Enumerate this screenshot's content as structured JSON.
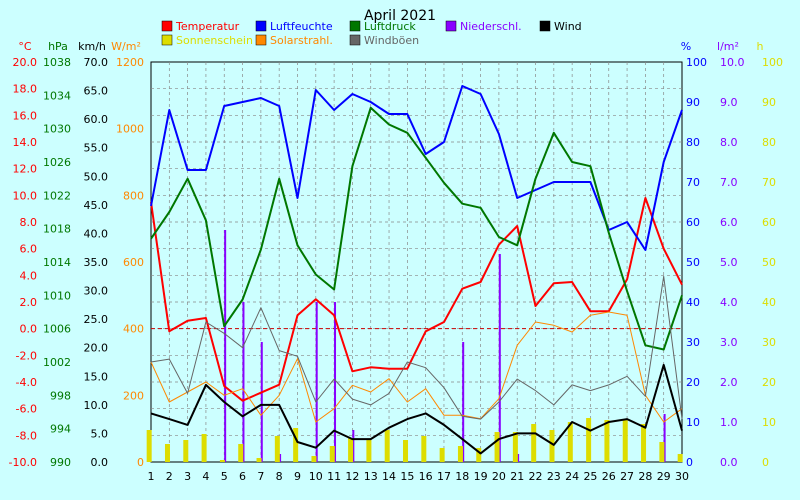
{
  "chart_data": {
    "type": "line",
    "title": "April 2021",
    "days": [
      1,
      2,
      3,
      4,
      5,
      6,
      7,
      8,
      9,
      10,
      11,
      12,
      13,
      14,
      15,
      16,
      17,
      18,
      19,
      20,
      21,
      22,
      23,
      24,
      25,
      26,
      27,
      28,
      29,
      30
    ],
    "legend": [
      {
        "label": "Temperatur",
        "color": "#ff0000",
        "kind": "line"
      },
      {
        "label": "Luftfeuchte",
        "color": "#0000ff",
        "kind": "line"
      },
      {
        "label": "Luftdruck",
        "color": "#007700",
        "kind": "line"
      },
      {
        "label": "Niederschl.",
        "color": "#8800ff",
        "kind": "bar"
      },
      {
        "label": "Wind",
        "color": "#000000",
        "kind": "line"
      },
      {
        "label": "Sonnenschein",
        "color": "#dddd00",
        "kind": "bar"
      },
      {
        "label": "Solarstrahl.",
        "color": "#ff8800",
        "kind": "line"
      },
      {
        "label": "Windböen",
        "color": "#666666",
        "kind": "line"
      }
    ],
    "axes": {
      "temp": {
        "unit": "°C",
        "color": "#ff0000",
        "min": -10,
        "max": 20,
        "ticks": [
          "20.0",
          "18.0",
          "16.0",
          "14.0",
          "12.0",
          "10.0",
          "8.0",
          "6.0",
          "4.0",
          "2.0",
          "0.0",
          "-2.0",
          "-4.0",
          "-6.0",
          "-8.0",
          "-10.0"
        ]
      },
      "pressure": {
        "unit": "hPa",
        "color": "#007700",
        "min": 990,
        "max": 1038,
        "ticks": [
          "1038",
          "1034",
          "1030",
          "1026",
          "1022",
          "1018",
          "1014",
          "1010",
          "1006",
          "1002",
          "998",
          "994",
          "990"
        ]
      },
      "wind": {
        "unit": "km/h",
        "color": "#000000",
        "min": 0,
        "max": 70,
        "ticks": [
          "70.0",
          "65.0",
          "60.0",
          "55.0",
          "50.0",
          "45.0",
          "40.0",
          "35.0",
          "30.0",
          "25.0",
          "20.0",
          "15.0",
          "10.0",
          "5.0",
          "0.0"
        ]
      },
      "solar": {
        "unit": "W/m²",
        "color": "#ff8800",
        "min": 0,
        "max": 1200,
        "ticks": [
          "1200",
          "1000",
          "800",
          "600",
          "400",
          "200",
          "0"
        ]
      },
      "humidity": {
        "unit": "%",
        "color": "#0000ff",
        "min": 0,
        "max": 100,
        "ticks": [
          "100",
          "90",
          "80",
          "70",
          "60",
          "50",
          "40",
          "30",
          "20",
          "10",
          "0"
        ]
      },
      "rain": {
        "unit": "l/m²",
        "color": "#8800ff",
        "min": 0,
        "max": 10,
        "ticks": [
          "10.0",
          "9.0",
          "8.0",
          "7.0",
          "6.0",
          "5.0",
          "4.0",
          "3.0",
          "2.0",
          "1.0",
          "0.0"
        ]
      },
      "sun": {
        "unit": "h",
        "color": "#dddd00",
        "min": 0,
        "max": 100,
        "ticks": [
          "100",
          "90",
          "80",
          "70",
          "60",
          "50",
          "40",
          "30",
          "20",
          "10",
          "0"
        ]
      }
    },
    "series": [
      {
        "name": "Temperatur",
        "axis": "temp",
        "color": "#ff0000",
        "width": 2,
        "values": [
          9.5,
          -0.2,
          0.6,
          0.8,
          -4.3,
          -5.4,
          -4.8,
          -4.2,
          1.0,
          2.2,
          1.0,
          -3.2,
          -2.9,
          -3.0,
          -3.0,
          -0.2,
          0.5,
          3.0,
          3.5,
          6.3,
          7.7,
          1.7,
          3.4,
          3.5,
          1.3,
          1.3,
          3.7,
          9.8,
          6.0,
          3.3
        ]
      },
      {
        "name": "Luftfeuchte",
        "axis": "humidity",
        "color": "#0000ff",
        "width": 2,
        "values": [
          64,
          88,
          73,
          73,
          89,
          90,
          91,
          89,
          66,
          93,
          88,
          92,
          90,
          87,
          87,
          77,
          80,
          94,
          92,
          82,
          66,
          68,
          70,
          70,
          70,
          58,
          60,
          53,
          75,
          88
        ]
      },
      {
        "name": "Luftdruck",
        "axis": "pressure",
        "color": "#007700",
        "width": 2,
        "values": [
          1016.8,
          1020,
          1024,
          1019,
          1006.3,
          1009.5,
          1015.5,
          1024,
          1016,
          1012.5,
          1010.7,
          1025.5,
          1032.5,
          1030.5,
          1029.5,
          1026.5,
          1023.5,
          1021,
          1020.5,
          1017,
          1016,
          1024,
          1029.5,
          1026,
          1025.5,
          1017.5,
          1010.5,
          1004,
          1003.5,
          1010
        ]
      },
      {
        "name": "Solarstrahl.",
        "axis": "solar",
        "color": "#ff8800",
        "width": 1,
        "values": [
          300,
          180,
          210,
          240,
          200,
          220,
          140,
          200,
          310,
          120,
          160,
          230,
          210,
          250,
          180,
          220,
          140,
          140,
          130,
          190,
          350,
          420,
          410,
          390,
          440,
          450,
          440,
          200,
          120,
          160
        ]
      },
      {
        "name": "Windböen",
        "axis": "wind",
        "color": "#666666",
        "width": 1,
        "values": [
          17.5,
          18,
          12,
          24.5,
          22.5,
          20,
          27,
          19.5,
          18.5,
          10.5,
          14.5,
          11,
          10,
          12,
          17.5,
          16.5,
          13,
          8,
          7.5,
          10.5,
          14.5,
          12.5,
          10,
          13.5,
          12.5,
          13.5,
          15,
          11.5,
          32.5,
          7.5
        ]
      },
      {
        "name": "Wind",
        "axis": "wind",
        "color": "#000000",
        "width": 2,
        "values": [
          8.5,
          7.5,
          6.5,
          13.5,
          10.5,
          8,
          10,
          10,
          3.5,
          2.5,
          5.5,
          4,
          4,
          6,
          7.5,
          8.5,
          6.5,
          4,
          1.5,
          4,
          5,
          5,
          3,
          7,
          5.5,
          7,
          7.5,
          6,
          17,
          5.5
        ]
      }
    ],
    "bars": [
      {
        "name": "Niederschl.",
        "axis": "rain",
        "color": "#8800ff",
        "width": 2,
        "offset": 0.05,
        "values": [
          0,
          0,
          0,
          0,
          5.8,
          4.0,
          3.0,
          0.2,
          0,
          4.0,
          4.0,
          0.8,
          0,
          0,
          0,
          0,
          0,
          3.0,
          0,
          5.2,
          0.2,
          0,
          0,
          0,
          0,
          0,
          0,
          0,
          1.2,
          0
        ]
      },
      {
        "name": "Sonnenschein",
        "axis": "sun",
        "color": "#dddd00",
        "width": 5,
        "offset": -0.1,
        "values": [
          8,
          4.5,
          5.5,
          7,
          0.5,
          4.5,
          1,
          6.5,
          8.5,
          1.5,
          4,
          6,
          5.5,
          8,
          5.5,
          6.5,
          3.5,
          4,
          3.5,
          7.5,
          7.5,
          9.5,
          8,
          10,
          11,
          10.5,
          10.5,
          9.5,
          5,
          2
        ]
      }
    ],
    "ref_line": {
      "axis": "solar",
      "value": 400,
      "color": "#cc0000"
    }
  }
}
